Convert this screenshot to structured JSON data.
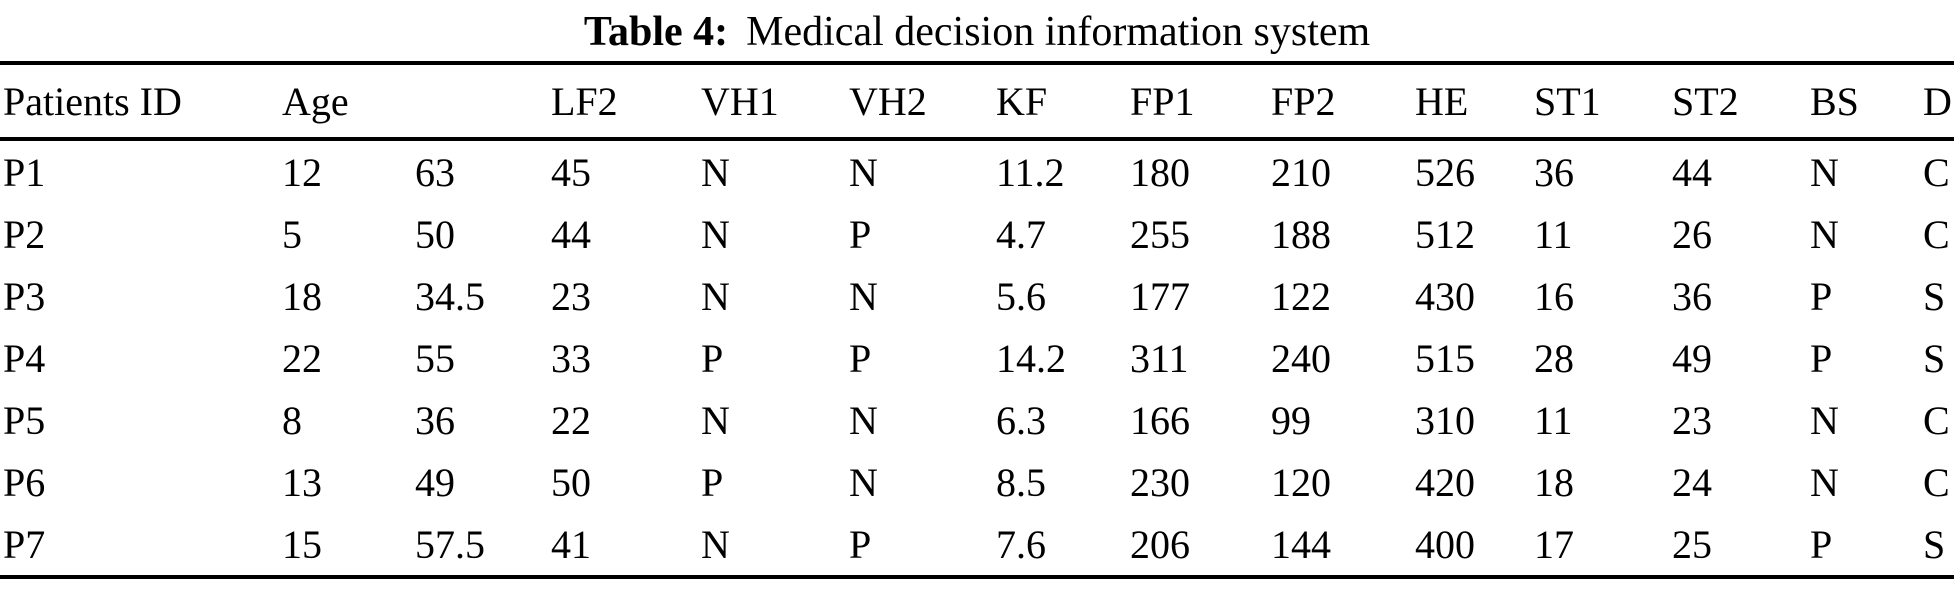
{
  "title": {
    "label": "Table 4:",
    "text": "Medical decision information system"
  },
  "table": {
    "columns": [
      "Patients ID",
      "Age",
      "",
      "LF2",
      "VH1",
      "VH2",
      "KF",
      "FP1",
      "FP2",
      "HE",
      "ST1",
      "ST2",
      "BS",
      "D"
    ],
    "rows": [
      [
        "P1",
        "12",
        "63",
        "45",
        "N",
        "N",
        "11.2",
        "180",
        "210",
        "526",
        "36",
        "44",
        "N",
        "C"
      ],
      [
        "P2",
        "5",
        "50",
        "44",
        "N",
        "P",
        "4.7",
        "255",
        "188",
        "512",
        "11",
        "26",
        "N",
        "C"
      ],
      [
        "P3",
        "18",
        "34.5",
        "23",
        "N",
        "N",
        "5.6",
        "177",
        "122",
        "430",
        "16",
        "36",
        "P",
        "S"
      ],
      [
        "P4",
        "22",
        "55",
        "33",
        "P",
        "P",
        "14.2",
        "311",
        "240",
        "515",
        "28",
        "49",
        "P",
        "S"
      ],
      [
        "P5",
        "8",
        "36",
        "22",
        "N",
        "N",
        "6.3",
        "166",
        "99",
        "310",
        "11",
        "23",
        "N",
        "C"
      ],
      [
        "P6",
        "13",
        "49",
        "50",
        "P",
        "N",
        "8.5",
        "230",
        "120",
        "420",
        "18",
        "24",
        "N",
        "C"
      ],
      [
        "P7",
        "15",
        "57.5",
        "41",
        "N",
        "P",
        "7.6",
        "206",
        "144",
        "400",
        "17",
        "25",
        "P",
        "S"
      ]
    ]
  },
  "chart_data": {
    "type": "table",
    "title": "Table 4: Medical decision information system",
    "columns": [
      "Patients ID",
      "Age",
      "",
      "LF2",
      "VH1",
      "VH2",
      "KF",
      "FP1",
      "FP2",
      "HE",
      "ST1",
      "ST2",
      "BS",
      "D"
    ],
    "rows": [
      [
        "P1",
        "12",
        "63",
        "45",
        "N",
        "N",
        "11.2",
        "180",
        "210",
        "526",
        "36",
        "44",
        "N",
        "C"
      ],
      [
        "P2",
        "5",
        "50",
        "44",
        "N",
        "P",
        "4.7",
        "255",
        "188",
        "512",
        "11",
        "26",
        "N",
        "C"
      ],
      [
        "P3",
        "18",
        "34.5",
        "23",
        "N",
        "N",
        "5.6",
        "177",
        "122",
        "430",
        "16",
        "36",
        "P",
        "S"
      ],
      [
        "P4",
        "22",
        "55",
        "33",
        "P",
        "P",
        "14.2",
        "311",
        "240",
        "515",
        "28",
        "49",
        "P",
        "S"
      ],
      [
        "P5",
        "8",
        "36",
        "22",
        "N",
        "N",
        "6.3",
        "166",
        "99",
        "310",
        "11",
        "23",
        "N",
        "C"
      ],
      [
        "P6",
        "13",
        "49",
        "50",
        "P",
        "N",
        "8.5",
        "230",
        "120",
        "420",
        "18",
        "24",
        "N",
        "C"
      ],
      [
        "P7",
        "15",
        "57.5",
        "41",
        "N",
        "P",
        "7.6",
        "206",
        "144",
        "400",
        "17",
        "25",
        "P",
        "S"
      ]
    ]
  }
}
